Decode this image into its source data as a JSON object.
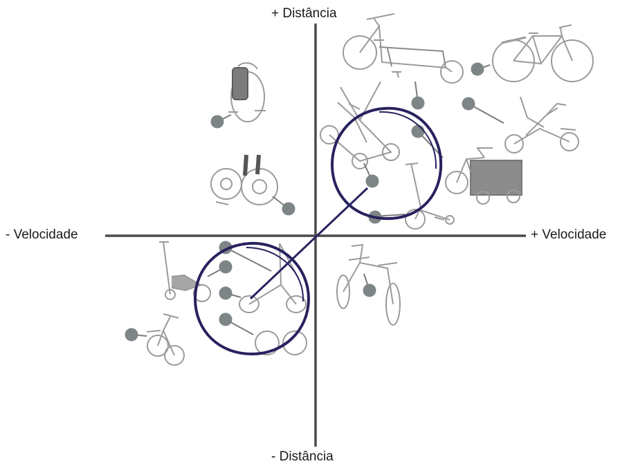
{
  "axes": {
    "top_label": "+ Distância",
    "bottom_label": "- Distância",
    "left_label": "- Velocidade",
    "right_label": "+ Velocidade"
  },
  "colors": {
    "axis": "#4a4a4a",
    "marker": "#7e8587",
    "highlight": "#27225e",
    "vehicle": "#9a9a9a"
  },
  "vehicles": [
    {
      "name": "city-bicycle-icon",
      "quadrant": "top-right"
    },
    {
      "name": "cargo-longtail-bike-icon",
      "quadrant": "top-right"
    },
    {
      "name": "recumbent-trike-icon",
      "quadrant": "top-right"
    },
    {
      "name": "cargo-box-trike-icon",
      "quadrant": "top-right"
    },
    {
      "name": "elliptical-bike-icon",
      "quadrant": "top-right"
    },
    {
      "name": "kick-scooter-icon",
      "quadrant": "top-right"
    },
    {
      "name": "electric-unicycle-icon",
      "quadrant": "top-left"
    },
    {
      "name": "hovershoes-icon",
      "quadrant": "top-left"
    },
    {
      "name": "drifting-scooter-icon",
      "quadrant": "bottom-left"
    },
    {
      "name": "balance-bike-icon",
      "quadrant": "bottom-left"
    },
    {
      "name": "stroller-bike-icon",
      "quadrant": "bottom-left"
    },
    {
      "name": "walking-bike-icon",
      "quadrant": "bottom-right"
    }
  ]
}
